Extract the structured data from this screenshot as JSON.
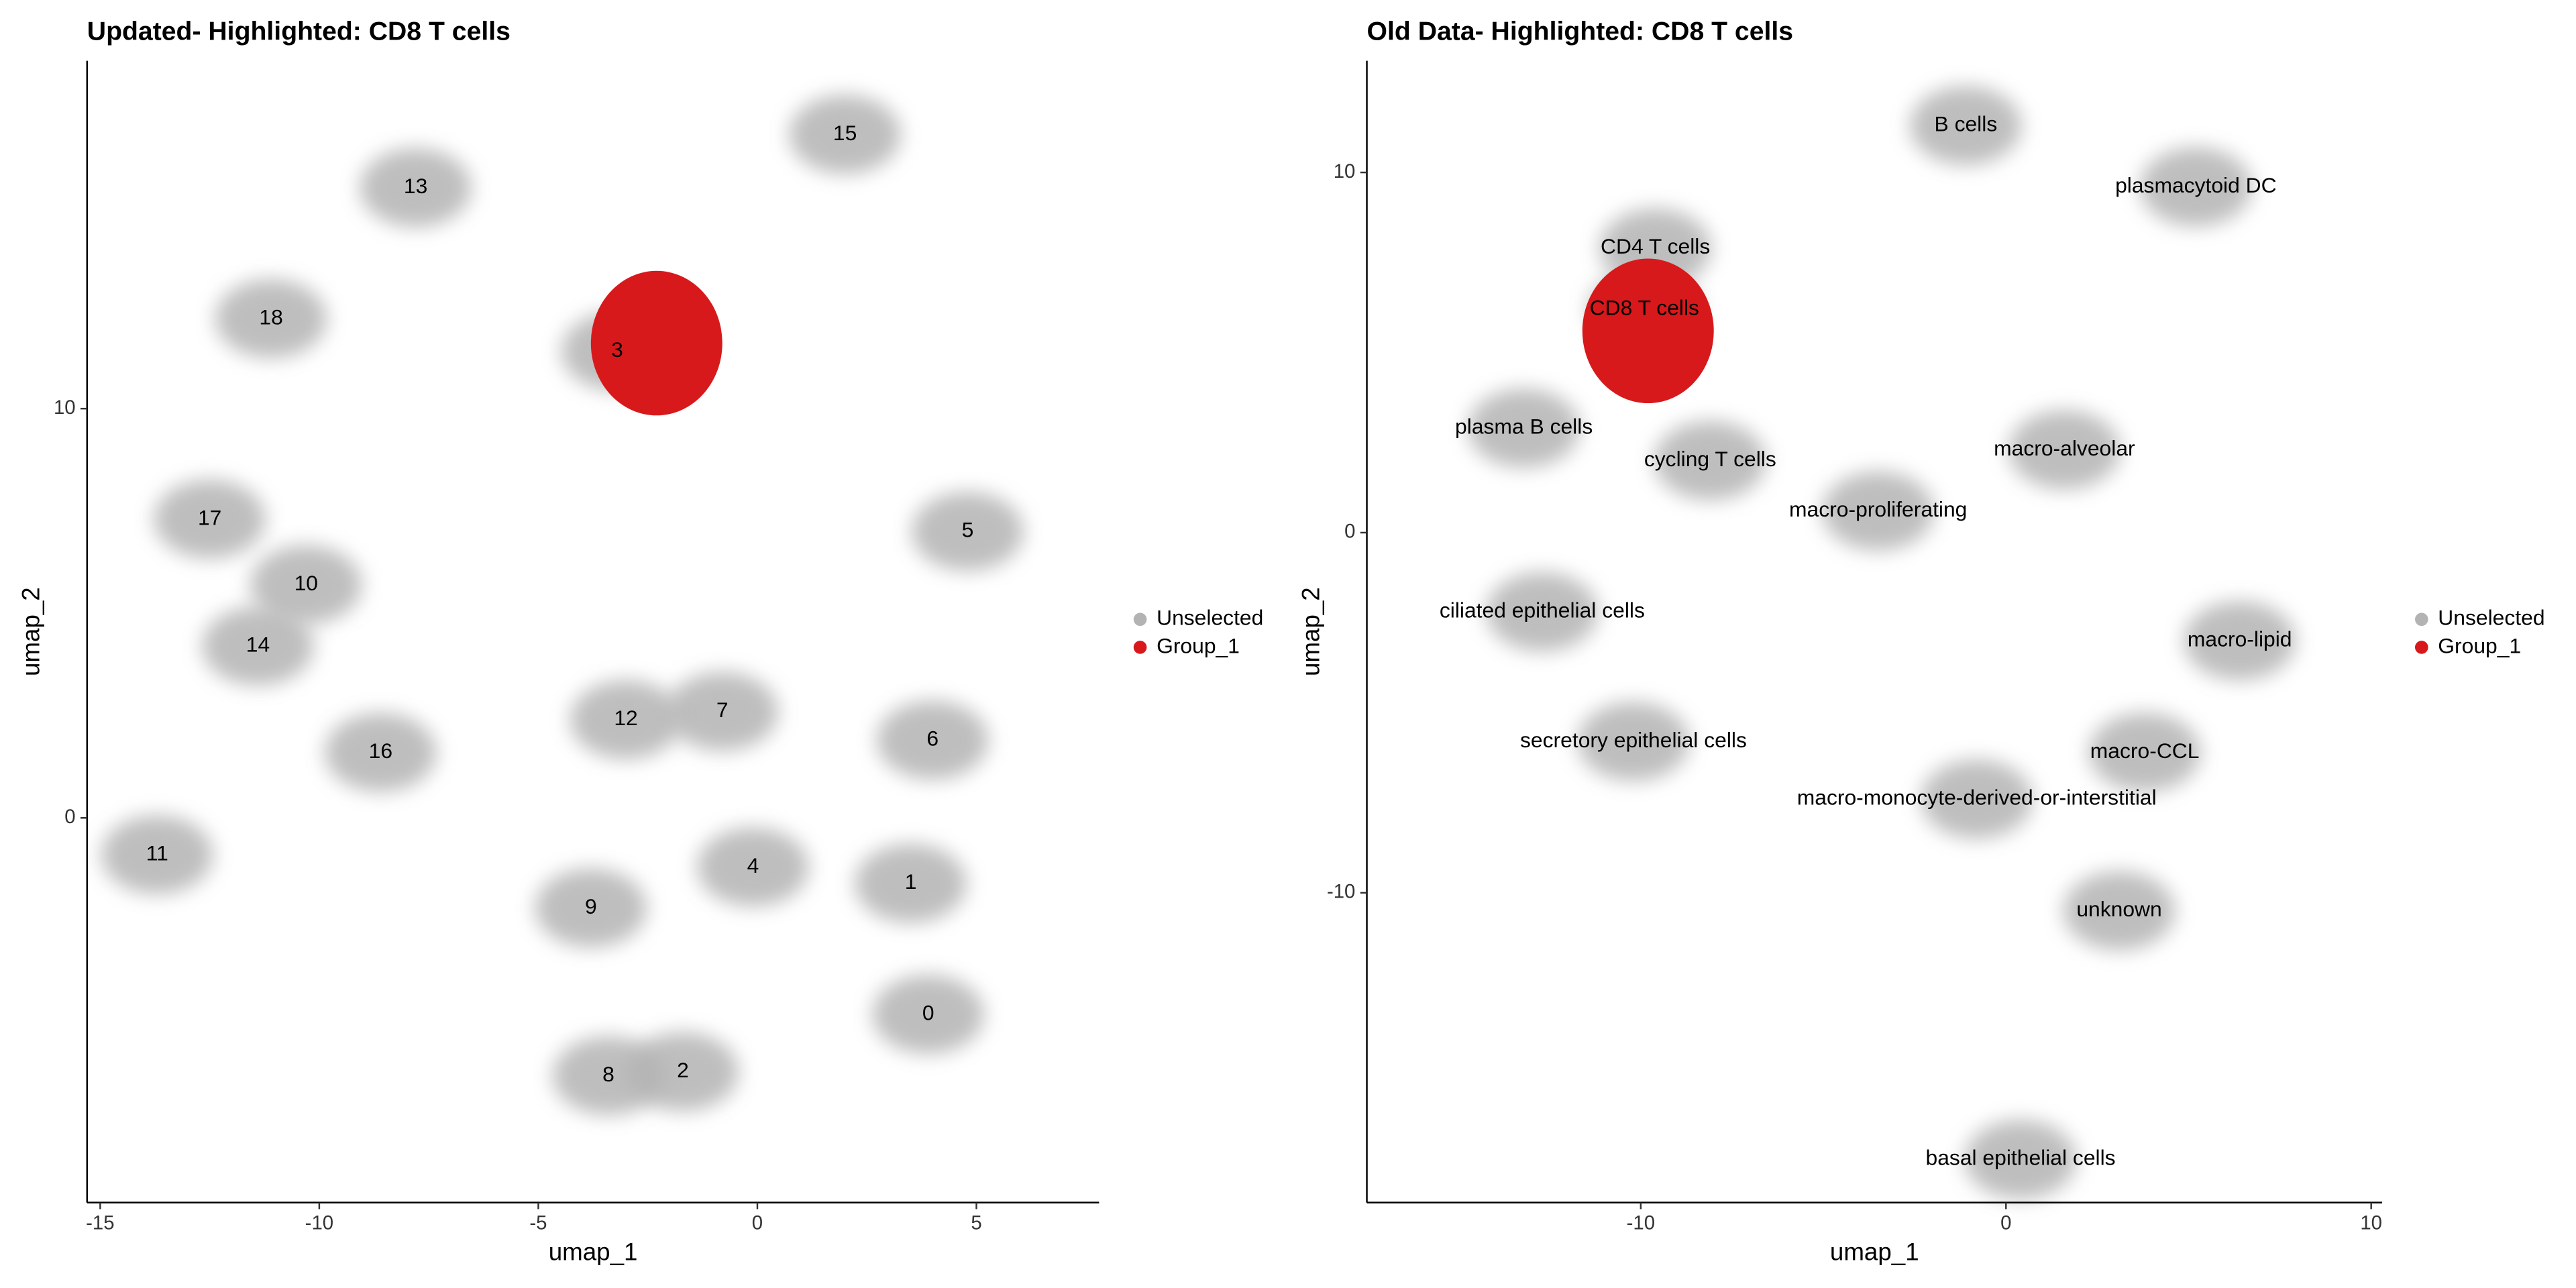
{
  "chart_data": [
    {
      "type": "scatter",
      "title": "Updated- Highlighted: CD8 T cells",
      "xlabel": "umap_1",
      "ylabel": "umap_2",
      "xlim": [
        -15.3,
        7.8
      ],
      "ylim": [
        -9.4,
        18.5
      ],
      "xticks": [
        -15,
        -10,
        -5,
        0,
        5
      ],
      "yticks": [
        0,
        10
      ],
      "series": [
        {
          "name": "Unselected",
          "color": "#b3b3b3",
          "x": [],
          "y": []
        },
        {
          "name": "Group_1",
          "color": "#d7191c",
          "x": [
            -2.3
          ],
          "y": [
            11.6
          ]
        }
      ],
      "annotations": [
        {
          "text": "15",
          "x": 2.0,
          "y": 16.7
        },
        {
          "text": "13",
          "x": -7.8,
          "y": 15.4
        },
        {
          "text": "18",
          "x": -11.1,
          "y": 12.2
        },
        {
          "text": "3",
          "x": -3.2,
          "y": 11.4
        },
        {
          "text": "17",
          "x": -12.5,
          "y": 7.3
        },
        {
          "text": "10",
          "x": -10.3,
          "y": 5.7
        },
        {
          "text": "5",
          "x": 4.8,
          "y": 7.0
        },
        {
          "text": "14",
          "x": -11.4,
          "y": 4.2
        },
        {
          "text": "12",
          "x": -3.0,
          "y": 2.4
        },
        {
          "text": "7",
          "x": -0.8,
          "y": 2.6
        },
        {
          "text": "6",
          "x": 4.0,
          "y": 1.9
        },
        {
          "text": "16",
          "x": -8.6,
          "y": 1.6
        },
        {
          "text": "11",
          "x": -13.7,
          "y": -0.9
        },
        {
          "text": "4",
          "x": -0.1,
          "y": -1.2
        },
        {
          "text": "1",
          "x": 3.5,
          "y": -1.6
        },
        {
          "text": "9",
          "x": -3.8,
          "y": -2.2
        },
        {
          "text": "0",
          "x": 3.9,
          "y": -4.8
        },
        {
          "text": "2",
          "x": -1.7,
          "y": -6.2
        },
        {
          "text": "8",
          "x": -3.4,
          "y": -6.3
        }
      ]
    },
    {
      "type": "scatter",
      "title": "Old Data- Highlighted: CD8 T cells",
      "xlabel": "umap_1",
      "ylabel": "umap_2",
      "xlim": [
        -17.5,
        10.3
      ],
      "ylim": [
        -18.6,
        13.1
      ],
      "xticks": [
        -10,
        0,
        10
      ],
      "yticks": [
        -10,
        0,
        10
      ],
      "series": [
        {
          "name": "Unselected",
          "color": "#b3b3b3",
          "x": [],
          "y": []
        },
        {
          "name": "Group_1",
          "color": "#d7191c",
          "x": [
            -9.8
          ],
          "y": [
            5.6
          ]
        }
      ],
      "annotations": [
        {
          "text": "B cells",
          "x": -1.1,
          "y": 11.3
        },
        {
          "text": "plasmacytoid DC",
          "x": 5.2,
          "y": 9.6
        },
        {
          "text": "CD4 T cells",
          "x": -9.6,
          "y": 7.9
        },
        {
          "text": "CD8 T cells",
          "x": -9.9,
          "y": 6.2
        },
        {
          "text": "plasma B cells",
          "x": -13.2,
          "y": 2.9
        },
        {
          "text": "cycling T cells",
          "x": -8.1,
          "y": 2.0
        },
        {
          "text": "macro-alveolar",
          "x": 1.6,
          "y": 2.3
        },
        {
          "text": "macro-proliferating",
          "x": -3.5,
          "y": 0.6
        },
        {
          "text": "ciliated epithelial cells",
          "x": -12.7,
          "y": -2.2
        },
        {
          "text": "macro-lipid",
          "x": 6.4,
          "y": -3.0
        },
        {
          "text": "secretory epithelial cells",
          "x": -10.2,
          "y": -5.8
        },
        {
          "text": "macro-CCL",
          "x": 3.8,
          "y": -6.1
        },
        {
          "text": "macro-monocyte-derived-or-interstitial",
          "x": -0.8,
          "y": -7.4
        },
        {
          "text": "unknown",
          "x": 3.1,
          "y": -10.5
        },
        {
          "text": "basal epithelial cells",
          "x": 0.4,
          "y": -17.4
        }
      ]
    }
  ]
}
